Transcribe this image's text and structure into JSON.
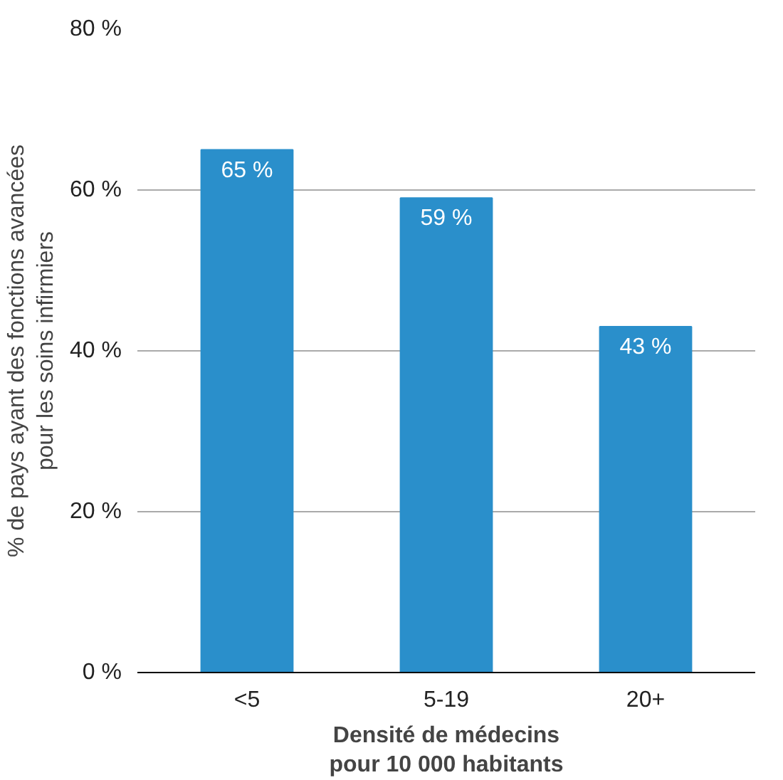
{
  "chart_data": {
    "type": "bar",
    "xlabel": "Densité de médecins\npour 10 000 habitants",
    "ylabel": "% de pays ayant des fonctions avancées\npour les soins infirmiers",
    "categories": [
      "<5",
      "5-19",
      "20+"
    ],
    "values": [
      65,
      59,
      43
    ],
    "value_labels": [
      "65 %",
      "59 %",
      "43 %"
    ],
    "color": "#2a8fcb",
    "ylim": [
      0,
      80
    ],
    "yticks": [
      {
        "value": 0,
        "label": "0 %"
      },
      {
        "value": 20,
        "label": "20 %"
      },
      {
        "value": 40,
        "label": "40 %"
      },
      {
        "value": 60,
        "label": "60 %"
      },
      {
        "value": 80,
        "label": "80 %"
      }
    ],
    "grid": "y"
  }
}
